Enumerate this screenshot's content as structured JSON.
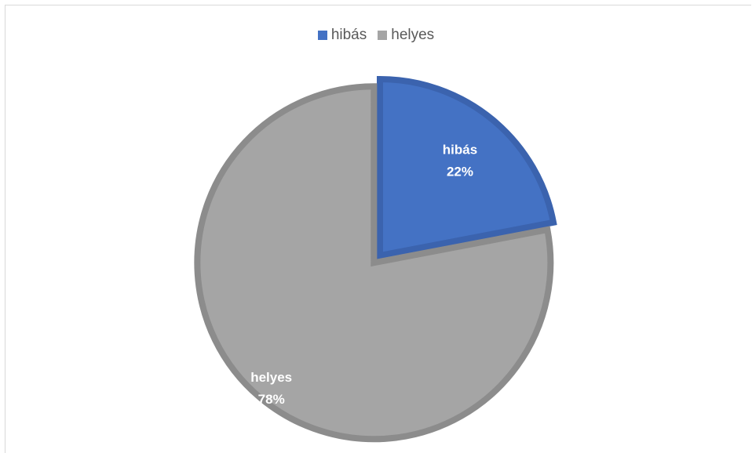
{
  "chart_data": {
    "type": "pie",
    "title": "",
    "legend_position": "top",
    "slices": [
      {
        "name": "hibás",
        "value": 22,
        "label": "hibás",
        "percent_label": "22%",
        "color": "#4472C4",
        "border_color": "#3B63AE"
      },
      {
        "name": "helyes",
        "value": 78,
        "label": "helyes",
        "percent_label": "78%",
        "color": "#A5A5A5",
        "border_color": "#8C8C8C"
      }
    ]
  },
  "legend": {
    "items": [
      {
        "label": "hibás",
        "color": "#4472C4"
      },
      {
        "label": "helyes",
        "color": "#A5A5A5"
      }
    ]
  }
}
